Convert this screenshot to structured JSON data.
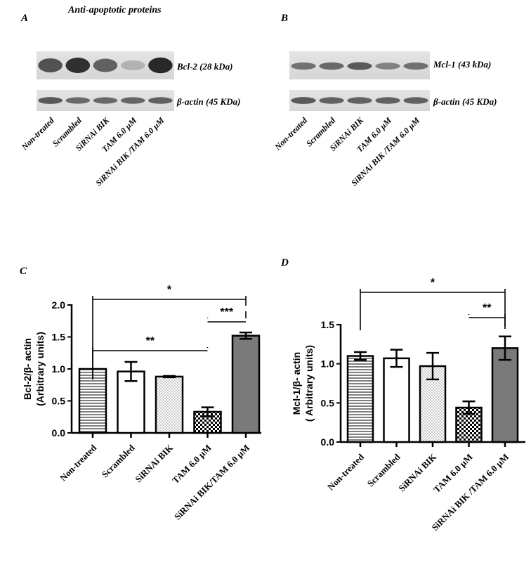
{
  "panel_a": {
    "letter": "A",
    "title": "Anti-apoptotic proteins",
    "band1_label": "Bcl-2 (28 kDa)",
    "band2_label": "β-actin (45 KDa)",
    "lanes": [
      "Non-treated",
      "Scrambled",
      "SiRNAi BIK",
      "TAM 6.0 µM",
      "SiRNAi BIK /TAM 6.0 µM"
    ],
    "band1_intensity": [
      0.75,
      0.95,
      0.65,
      0.15,
      1.0
    ],
    "band2_intensity": [
      0.7,
      0.6,
      0.6,
      0.62,
      0.65
    ]
  },
  "panel_b": {
    "letter": "B",
    "band1_label": "Mcl-1 (43 kDa)",
    "band2_label": "β-actin (45 KDa)",
    "lanes": [
      "Non-treated",
      "Scrambled",
      "SiRNAi BIK",
      "TAM 6.0 µM",
      "SiRNAi BIK /TAM 6.0 µM"
    ],
    "band1_intensity": [
      0.55,
      0.6,
      0.7,
      0.45,
      0.55
    ],
    "band2_intensity": [
      0.7,
      0.65,
      0.65,
      0.65,
      0.65
    ]
  },
  "chart_data": [
    {
      "id": "C",
      "letter": "C",
      "type": "bar",
      "ylabel_line1": "Bcl-2/β- actin",
      "ylabel_line2": "(Arbitrary units)",
      "categories": [
        "Non-treated",
        "Scrambled",
        "SiRNAi BIK",
        "TAM 6.0 µM",
        "SiRNAi BIK/TAM  6.0 µM"
      ],
      "values": [
        1.0,
        0.96,
        0.88,
        0.33,
        1.52
      ],
      "errors": [
        0.0,
        0.15,
        0.01,
        0.07,
        0.05
      ],
      "fills": [
        "hlines",
        "white",
        "dots",
        "checker",
        "gray"
      ],
      "ylim": [
        0,
        2.0
      ],
      "yticks": [
        "0.0",
        "0.5",
        "1.0",
        "1.5",
        "2.0"
      ],
      "yticks_values": [
        0,
        0.5,
        1.0,
        1.5,
        2.0
      ],
      "significance": [
        {
          "from": 0,
          "to": 4,
          "label": "*"
        },
        {
          "from": 0,
          "to": 3,
          "label": "**"
        },
        {
          "from": 3,
          "to": 4,
          "label": "***"
        }
      ]
    },
    {
      "id": "D",
      "letter": "D",
      "type": "bar",
      "ylabel_line1": "Mcl-1/β- actin",
      "ylabel_line2": "( Arbitrary units)",
      "categories": [
        "Non-treated",
        "Scrambled",
        "SiRNAi BIK",
        "TAM 6.0 µM",
        "SiRNAi BIK /TAM 6.0 µM"
      ],
      "values": [
        1.1,
        1.07,
        0.97,
        0.44,
        1.2
      ],
      "errors": [
        0.05,
        0.11,
        0.17,
        0.08,
        0.15
      ],
      "fills": [
        "hlines",
        "white",
        "dots",
        "checker",
        "gray"
      ],
      "ylim": [
        0,
        1.5
      ],
      "yticks": [
        "0.0",
        "0.5",
        "1.0",
        "1.5"
      ],
      "yticks_values": [
        0,
        0.5,
        1.0,
        1.5
      ],
      "significance": [
        {
          "from": 0,
          "to": 4,
          "label": "*"
        },
        {
          "from": 3,
          "to": 4,
          "label": "**"
        }
      ]
    }
  ]
}
